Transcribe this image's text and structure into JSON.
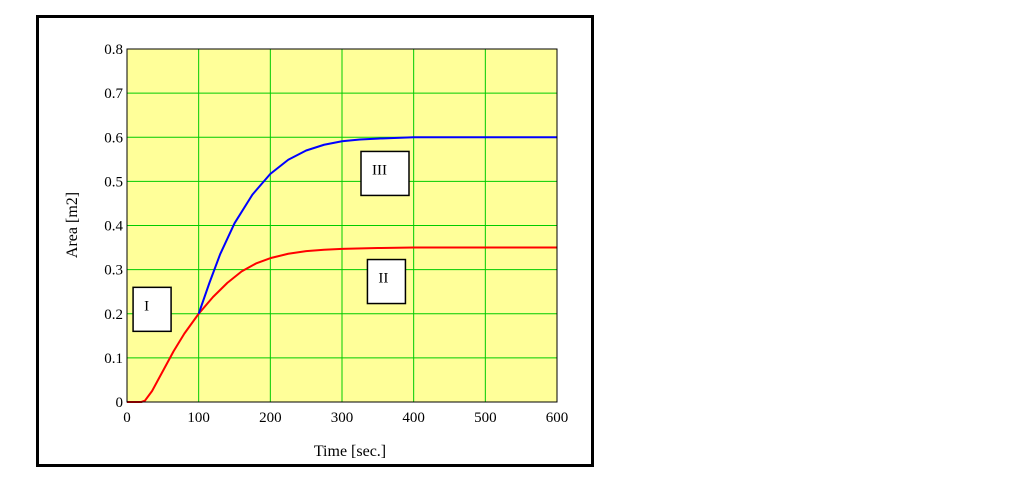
{
  "chart_data": {
    "type": "line",
    "xlabel": "Time [sec.]",
    "ylabel": "Area [m2]",
    "xlim": [
      0,
      600
    ],
    "ylim": [
      0,
      0.8
    ],
    "xticks": [
      "0",
      "100",
      "200",
      "300",
      "400",
      "500",
      "600"
    ],
    "yticks": [
      "0",
      "0.1",
      "0.2",
      "0.3",
      "0.4",
      "0.5",
      "0.6",
      "0.7",
      "0.8"
    ],
    "grid": true,
    "grid_color": "#00cc00",
    "series": [
      {
        "color": "#ff0000",
        "x": [
          0,
          20,
          25,
          35,
          50,
          65,
          80,
          100,
          120,
          140,
          160,
          180,
          200,
          225,
          250,
          275,
          300,
          350,
          400,
          500,
          600
        ],
        "y": [
          0,
          0,
          0.003,
          0.025,
          0.07,
          0.115,
          0.155,
          0.2,
          0.238,
          0.27,
          0.296,
          0.314,
          0.326,
          0.336,
          0.342,
          0.345,
          0.347,
          0.349,
          0.35,
          0.35,
          0.35
        ]
      },
      {
        "color": "#0000ff",
        "x": [
          100,
          115,
          130,
          150,
          175,
          200,
          225,
          250,
          275,
          300,
          325,
          350,
          400,
          450,
          500,
          600
        ],
        "y": [
          0.2,
          0.27,
          0.335,
          0.405,
          0.47,
          0.517,
          0.549,
          0.57,
          0.583,
          0.591,
          0.595,
          0.597,
          0.6,
          0.6,
          0.6,
          0.6
        ]
      }
    ],
    "annotations": [
      {
        "text": "I",
        "x": 35,
        "y": 0.21
      },
      {
        "text": "II",
        "x": 362,
        "y": 0.273
      },
      {
        "text": "III",
        "x": 360,
        "y": 0.518
      }
    ]
  }
}
